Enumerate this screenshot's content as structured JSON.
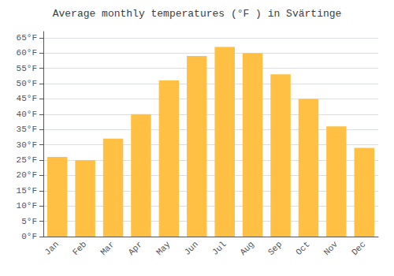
{
  "chart_data": {
    "type": "bar",
    "title": "Average monthly temperatures (°F ) in Svärtinge",
    "categories": [
      "Jan",
      "Feb",
      "Mar",
      "Apr",
      "May",
      "Jun",
      "Jul",
      "Aug",
      "Sep",
      "Oct",
      "Nov",
      "Dec"
    ],
    "values": [
      26,
      25,
      32,
      40,
      51,
      59,
      62,
      60,
      53,
      45,
      36,
      29
    ],
    "color": "#FFC044",
    "ylim": [
      0,
      67
    ],
    "yticks": [
      {
        "value": 0,
        "label": "0°F"
      },
      {
        "value": 5,
        "label": "5°F"
      },
      {
        "value": 10,
        "label": "10°F"
      },
      {
        "value": 15,
        "label": "15°F"
      },
      {
        "value": 20,
        "label": "20°F"
      },
      {
        "value": 25,
        "label": "25°F"
      },
      {
        "value": 30,
        "label": "30°F"
      },
      {
        "value": 35,
        "label": "35°F"
      },
      {
        "value": 40,
        "label": "40°F"
      },
      {
        "value": 45,
        "label": "45°F"
      },
      {
        "value": 50,
        "label": "50°F"
      },
      {
        "value": 55,
        "label": "55°F"
      },
      {
        "value": 60,
        "label": "60°F"
      },
      {
        "value": 65,
        "label": "65°F"
      }
    ],
    "grid": true
  }
}
